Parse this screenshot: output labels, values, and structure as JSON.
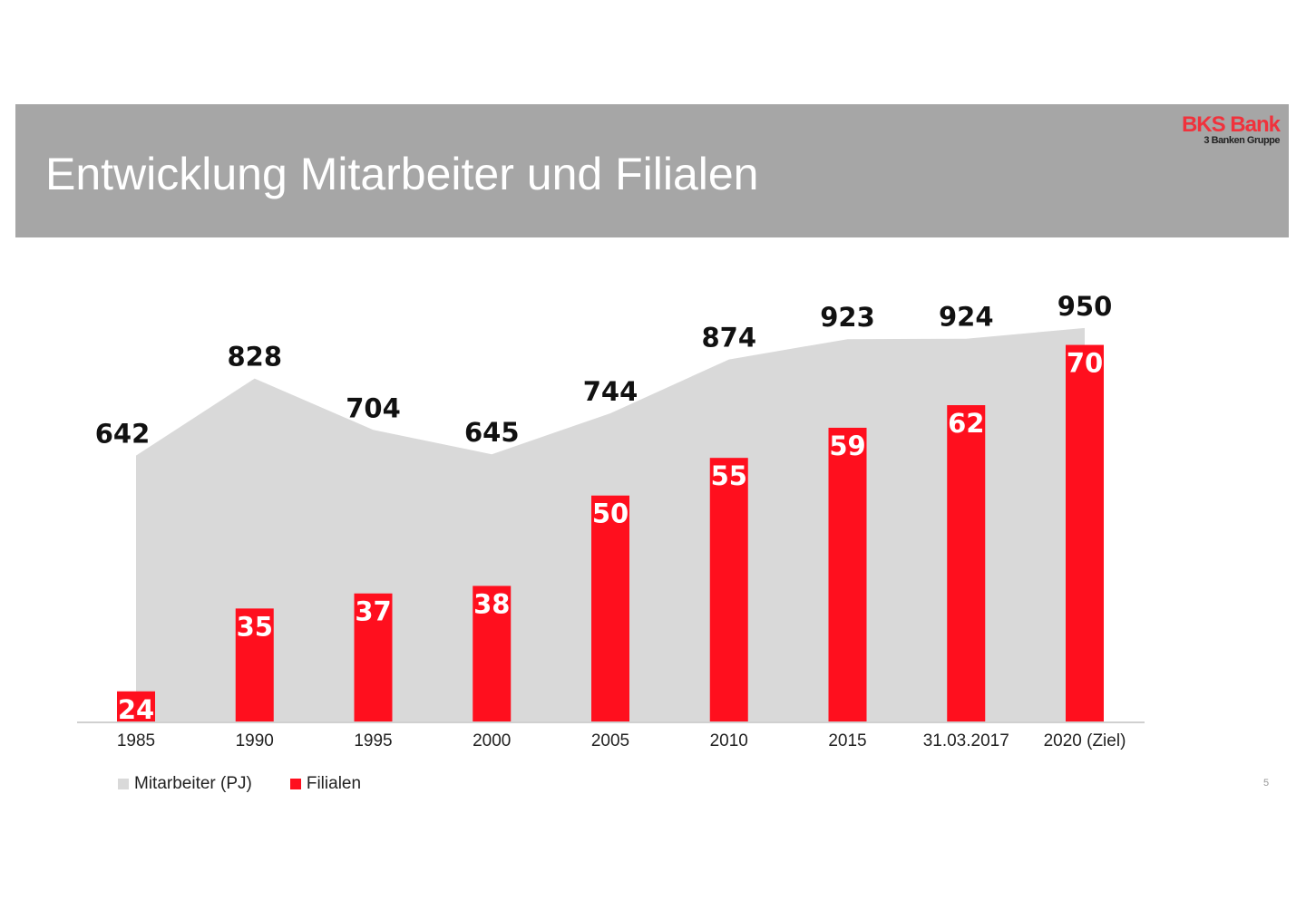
{
  "header": {
    "title": "Entwicklung Mitarbeiter und Filialen",
    "logo_main": "BKS Bank",
    "logo_sub": "3 Banken Gruppe"
  },
  "page_number": "5",
  "colors": {
    "area": "#d9d9d9",
    "bars": "#ff0f1e",
    "header": "#a6a6a6"
  },
  "chart_data": {
    "type": "bar+area",
    "categories": [
      "1985",
      "1990",
      "1995",
      "2000",
      "2005",
      "2010",
      "2015",
      "31.03.2017",
      "2020 (Ziel)"
    ],
    "series": [
      {
        "name": "Mitarbeiter (PJ)",
        "type": "area",
        "values": [
          642,
          828,
          704,
          645,
          744,
          874,
          923,
          924,
          950
        ],
        "ylim": [
          0,
          1000
        ]
      },
      {
        "name": "Filialen",
        "type": "bar",
        "values": [
          24,
          35,
          37,
          38,
          50,
          55,
          59,
          62,
          70
        ],
        "ylim": [
          20,
          75
        ]
      }
    ],
    "legend": "bottom-left",
    "grid": false
  }
}
